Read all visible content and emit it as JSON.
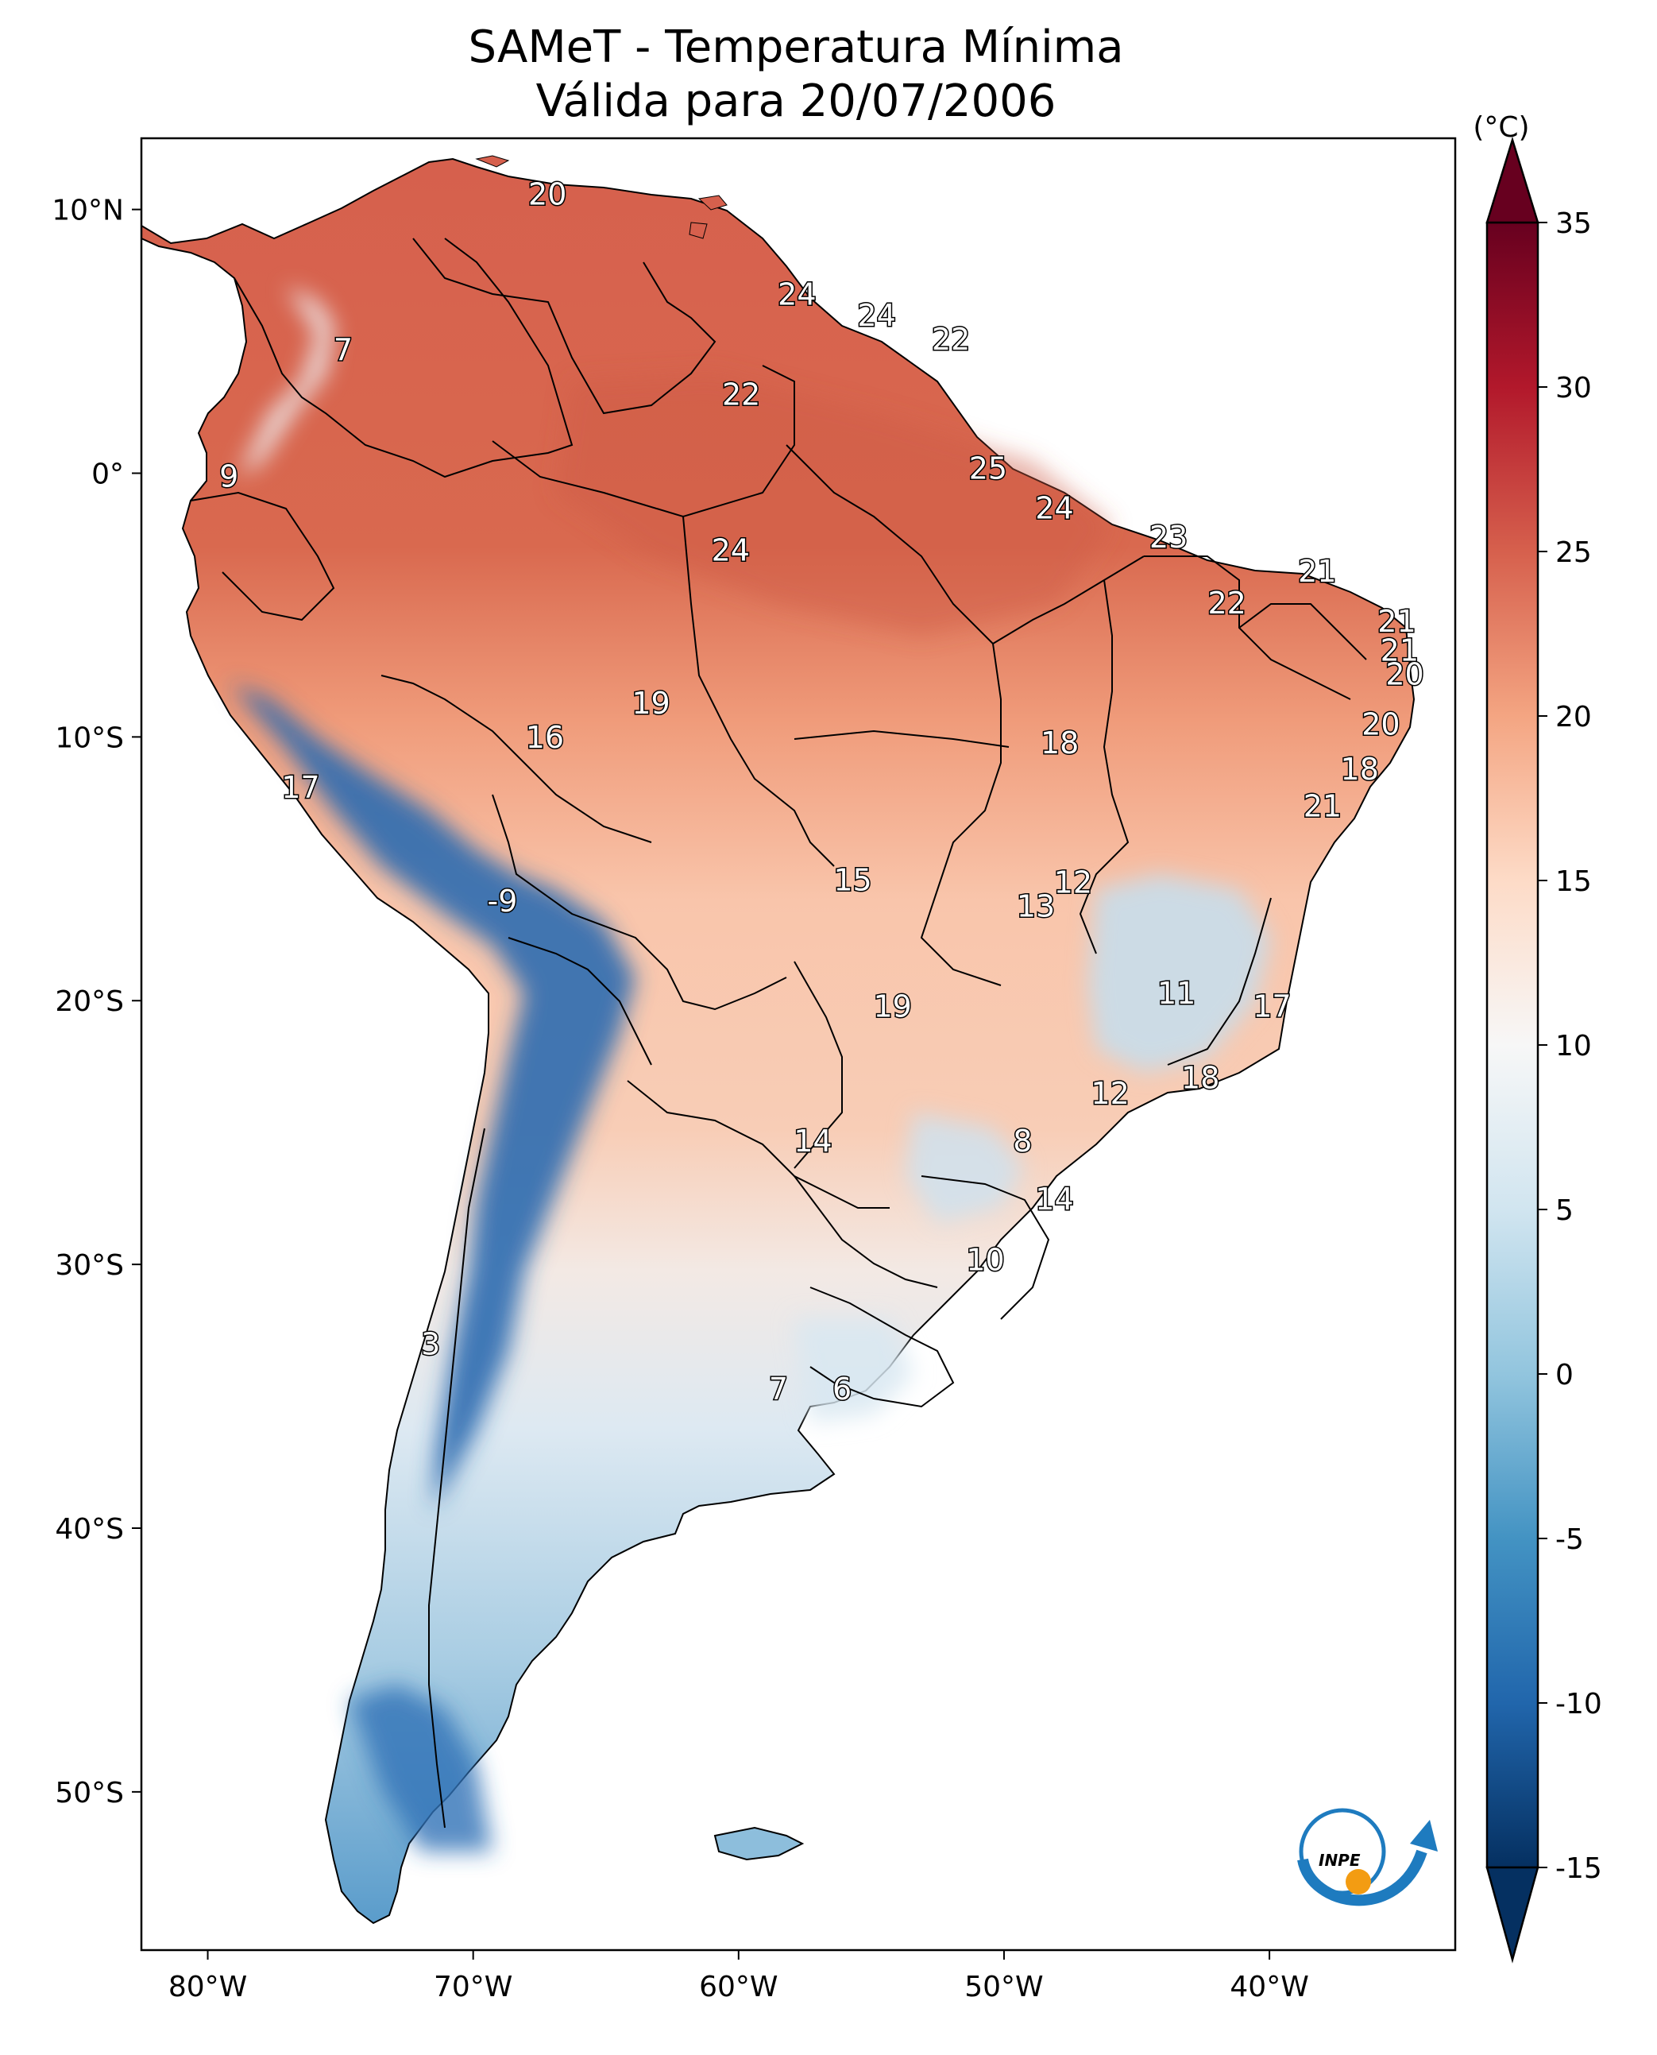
{
  "title": "SAMeT - Temperatura Mínima",
  "subtitle": "Válida para 20/07/2006",
  "colorbar": {
    "unit": "(°C)",
    "ticks": [
      "35",
      "30",
      "25",
      "20",
      "15",
      "10",
      "5",
      "0",
      "-5",
      "-10",
      "-15"
    ],
    "min": -15,
    "max": 35,
    "colors": [
      "#053061",
      "#2166ac",
      "#4393c3",
      "#92c5de",
      "#d1e5f0",
      "#f7f7f7",
      "#fddbc7",
      "#f4a582",
      "#d6604d",
      "#b2182b",
      "#67001f"
    ]
  },
  "axes": {
    "lon_ticks": [
      "80°W",
      "70°W",
      "60°W",
      "50°W",
      "40°W"
    ],
    "lat_ticks": [
      "10°N",
      "0°",
      "10°S",
      "20°S",
      "30°S",
      "40°S",
      "50°S"
    ]
  },
  "logo": {
    "text": "INPE"
  },
  "map_labels": [
    {
      "value": "20",
      "lon": -67.2,
      "lat": 10.5
    },
    {
      "value": "24",
      "lon": -57.8,
      "lat": 6.7
    },
    {
      "value": "24",
      "lon": -54.8,
      "lat": 5.9
    },
    {
      "value": "22",
      "lon": -52.0,
      "lat": 5.0
    },
    {
      "value": "7",
      "lon": -74.9,
      "lat": 4.6
    },
    {
      "value": "22",
      "lon": -59.9,
      "lat": 2.9
    },
    {
      "value": "25",
      "lon": -50.6,
      "lat": 0.1
    },
    {
      "value": "9",
      "lon": -79.2,
      "lat": -0.2
    },
    {
      "value": "24",
      "lon": -48.1,
      "lat": -1.4
    },
    {
      "value": "23",
      "lon": -43.8,
      "lat": -2.5
    },
    {
      "value": "24",
      "lon": -60.3,
      "lat": -3.0
    },
    {
      "value": "21",
      "lon": -38.2,
      "lat": -3.8
    },
    {
      "value": "22",
      "lon": -41.6,
      "lat": -5.0
    },
    {
      "value": "21",
      "lon": -35.2,
      "lat": -5.7
    },
    {
      "value": "21",
      "lon": -35.1,
      "lat": -6.8
    },
    {
      "value": "20",
      "lon": -34.9,
      "lat": -7.7
    },
    {
      "value": "19",
      "lon": -63.3,
      "lat": -8.8
    },
    {
      "value": "20",
      "lon": -35.8,
      "lat": -9.6
    },
    {
      "value": "16",
      "lon": -67.3,
      "lat": -10.1
    },
    {
      "value": "18",
      "lon": -47.9,
      "lat": -10.3
    },
    {
      "value": "18",
      "lon": -36.6,
      "lat": -11.3
    },
    {
      "value": "17",
      "lon": -76.5,
      "lat": -12.0
    },
    {
      "value": "21",
      "lon": -38.0,
      "lat": -12.7
    },
    {
      "value": "12",
      "lon": -47.4,
      "lat": -15.6
    },
    {
      "value": "15",
      "lon": -55.7,
      "lat": -15.5
    },
    {
      "value": "13",
      "lon": -48.8,
      "lat": -16.5
    },
    {
      "value": "-9",
      "lon": -68.9,
      "lat": -16.3
    },
    {
      "value": "11",
      "lon": -43.5,
      "lat": -19.8
    },
    {
      "value": "19",
      "lon": -54.2,
      "lat": -20.3
    },
    {
      "value": "17",
      "lon": -39.9,
      "lat": -20.3
    },
    {
      "value": "18",
      "lon": -42.6,
      "lat": -23.0
    },
    {
      "value": "12",
      "lon": -46.0,
      "lat": -23.6
    },
    {
      "value": "8",
      "lon": -49.3,
      "lat": -25.4
    },
    {
      "value": "14",
      "lon": -57.2,
      "lat": -25.4
    },
    {
      "value": "14",
      "lon": -48.1,
      "lat": -27.6
    },
    {
      "value": "10",
      "lon": -50.7,
      "lat": -29.9
    },
    {
      "value": "3",
      "lon": -71.6,
      "lat": -33.1
    },
    {
      "value": "7",
      "lon": -58.5,
      "lat": -34.8
    },
    {
      "value": "6",
      "lon": -56.1,
      "lat": -34.8
    }
  ]
}
